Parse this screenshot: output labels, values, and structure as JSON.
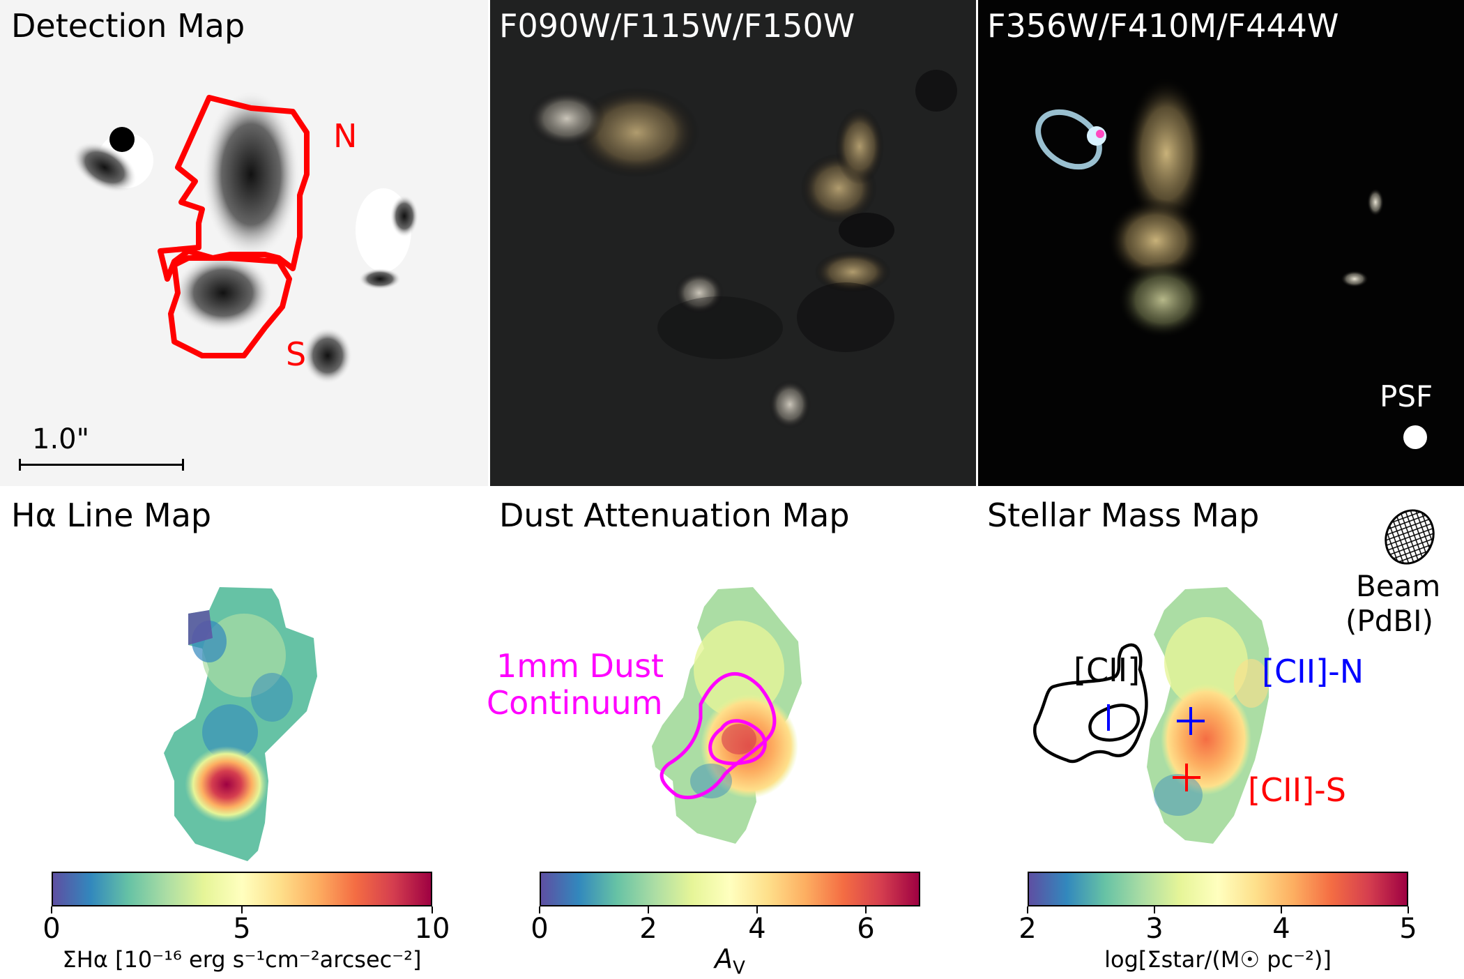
{
  "panels": {
    "detection": {
      "title": "Detection Map",
      "label_n": "N",
      "label_s": "S",
      "scale_label": "1.0\""
    },
    "rgb_short": {
      "title": "F090W/F115W/F150W"
    },
    "rgb_long": {
      "title": "F356W/F410M/F444W",
      "psf_label": "PSF"
    },
    "halpha": {
      "title": "Hα Line Map"
    },
    "dust": {
      "title": "Dust Attenuation Map",
      "contour_label_line1": "1mm Dust",
      "contour_label_line2": "Continuum"
    },
    "mass": {
      "title": "Stellar Mass Map",
      "beam_label_line1": "Beam",
      "beam_label_line2": "(PdBI)",
      "cii_label": "[CII]",
      "cii_n_label": "[CII]-N",
      "cii_s_label": "[CII]-S"
    }
  },
  "colorbars": [
    {
      "name": "halpha",
      "ticks": [
        "0",
        "5",
        "10"
      ],
      "tick_values": [
        0,
        5,
        10
      ],
      "range": [
        0,
        10
      ],
      "label": "ΣHα [10⁻¹⁶ erg s⁻¹cm⁻²arcsec⁻²]"
    },
    {
      "name": "dust",
      "ticks": [
        "0",
        "2",
        "4",
        "6"
      ],
      "tick_values": [
        0,
        2,
        4,
        6
      ],
      "range": [
        0,
        7
      ],
      "label": "AV"
    },
    {
      "name": "mass",
      "ticks": [
        "2",
        "3",
        "4",
        "5"
      ],
      "tick_values": [
        2,
        3,
        4,
        5
      ],
      "range": [
        2,
        5
      ],
      "label": "log[Σstar/(M☉ pc⁻²)]"
    }
  ],
  "colors": {
    "detection_contour": "#ff0000",
    "dust_contour": "#ff00ff",
    "cii_contour": "#000000",
    "cii_n_marker": "#0000ff",
    "cii_s_marker": "#ff0000"
  }
}
